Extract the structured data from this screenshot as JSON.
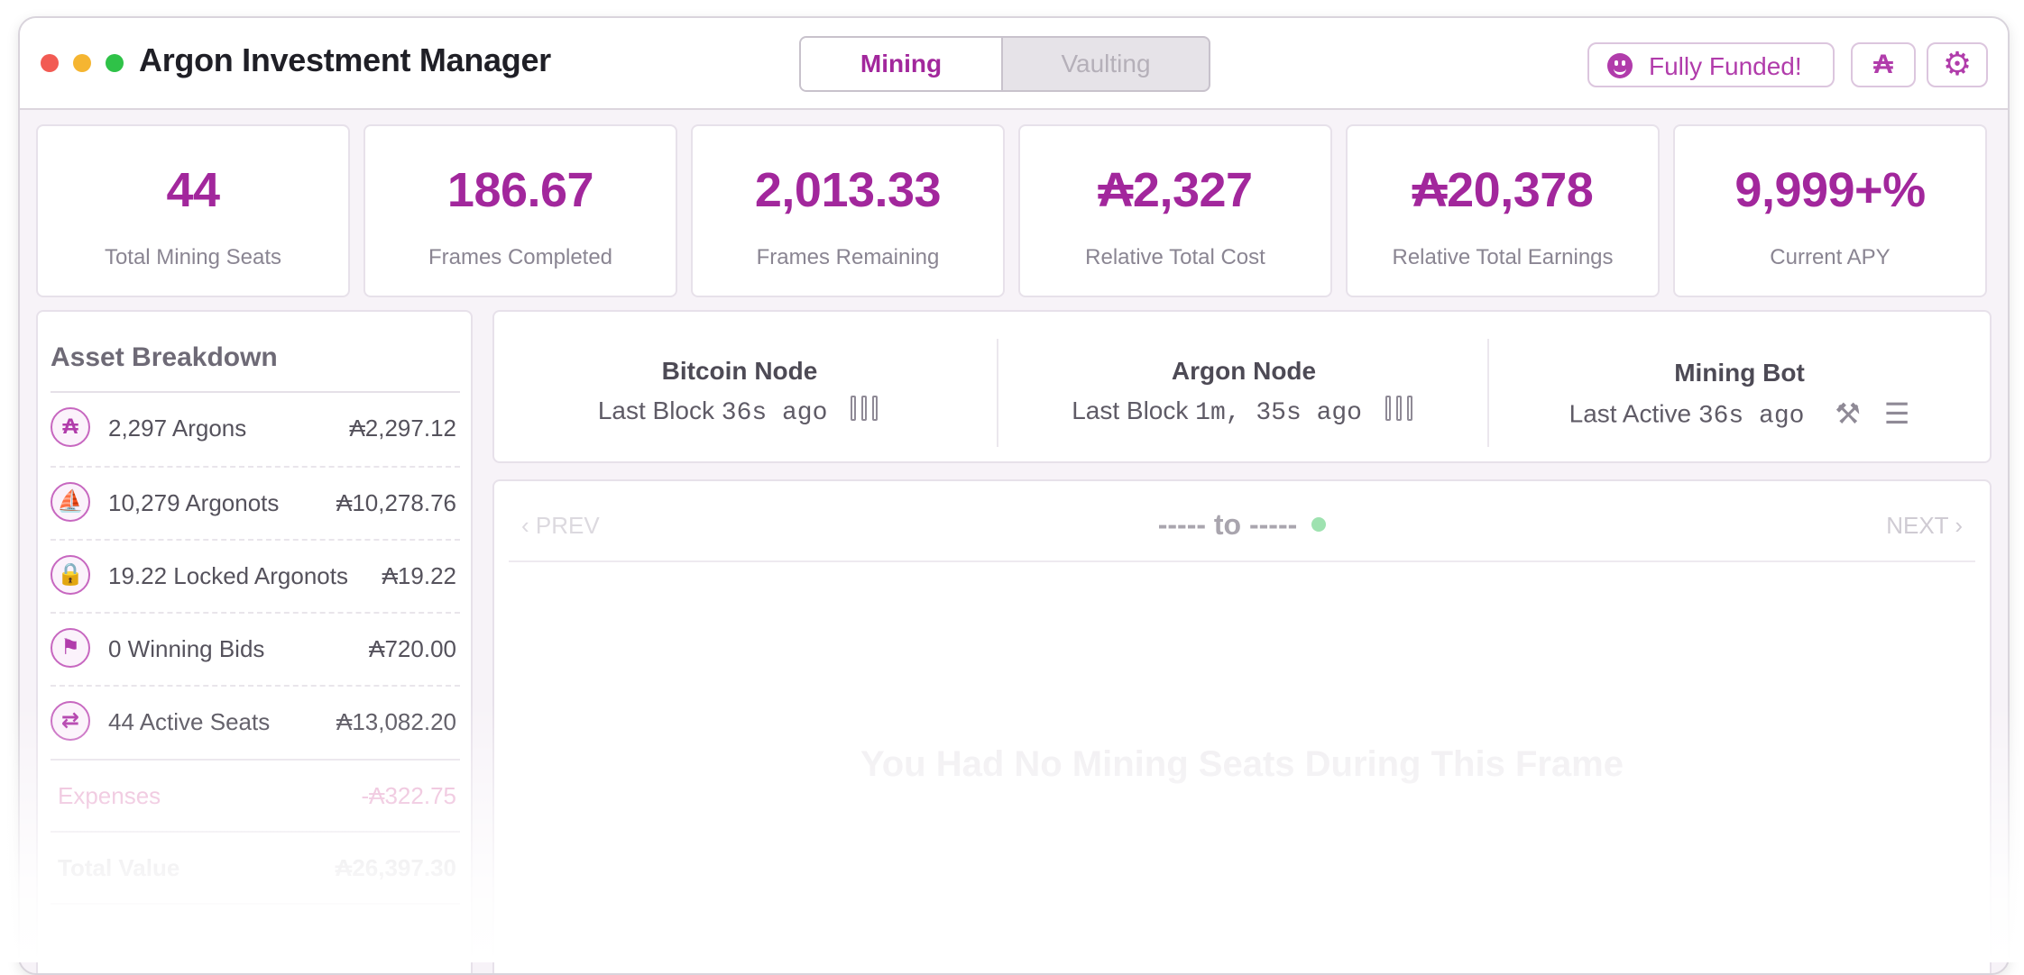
{
  "window": {
    "title": "Argon Investment Manager"
  },
  "tabs": [
    {
      "label": "Mining",
      "active": true
    },
    {
      "label": "Vaulting",
      "active": false
    }
  ],
  "header": {
    "funded_label": "Fully Funded!",
    "currency_symbol": "₳",
    "funded_icon": "smile-icon",
    "settings_icon": "gear-icon"
  },
  "stats": [
    {
      "value": "44",
      "label": "Total Mining Seats"
    },
    {
      "value": "186.67",
      "label": "Frames Completed"
    },
    {
      "value": "2,013.33",
      "label": "Frames Remaining"
    },
    {
      "value": "₳2,327",
      "label": "Relative Total Cost"
    },
    {
      "value": "₳20,378",
      "label": "Relative Total Earnings"
    },
    {
      "value": "9,999+%",
      "label": "Current APY"
    }
  ],
  "assets": {
    "title": "Asset Breakdown",
    "items": [
      {
        "name": "2,297 Argons",
        "amount": "₳2,297.12",
        "icon": "argon-icon",
        "glyph": "₳"
      },
      {
        "name": "10,279 Argonots",
        "amount": "₳10,278.76",
        "icon": "argonot-ship-icon",
        "glyph": "⛵"
      },
      {
        "name": "19.22 Locked Argonots",
        "amount": "₳19.22",
        "icon": "locked-ship-icon",
        "glyph": "🔒"
      },
      {
        "name": "0 Winning Bids",
        "amount": "₳720.00",
        "icon": "bid-icon",
        "glyph": "⚑"
      },
      {
        "name": "44 Active Seats",
        "amount": "₳13,082.20",
        "icon": "seat-icon",
        "glyph": "⇄"
      }
    ],
    "expenses": {
      "name": "Expenses",
      "amount": "-₳322.75"
    },
    "total": {
      "name": "Total Value",
      "amount": "₳26,397.30"
    }
  },
  "nodes": [
    {
      "title": "Bitcoin Node",
      "status_label": "Last Block",
      "status_value": "36s ago",
      "icon": "signal-bars-icon"
    },
    {
      "title": "Argon Node",
      "status_label": "Last Block",
      "status_value": "1m, 35s ago",
      "icon": "signal-bars-icon"
    },
    {
      "title": "Mining Bot",
      "status_label": "Last Active",
      "status_value": "36s ago",
      "icon": "gavel-icon"
    }
  ],
  "frame": {
    "prev_label": "PREV",
    "next_label": "NEXT",
    "range_label": "----- to -----",
    "empty_message": "You Had No Mining Seats During This Frame"
  },
  "colors": {
    "accent": "#a2279c",
    "status_dot": "#9ee2b0"
  }
}
